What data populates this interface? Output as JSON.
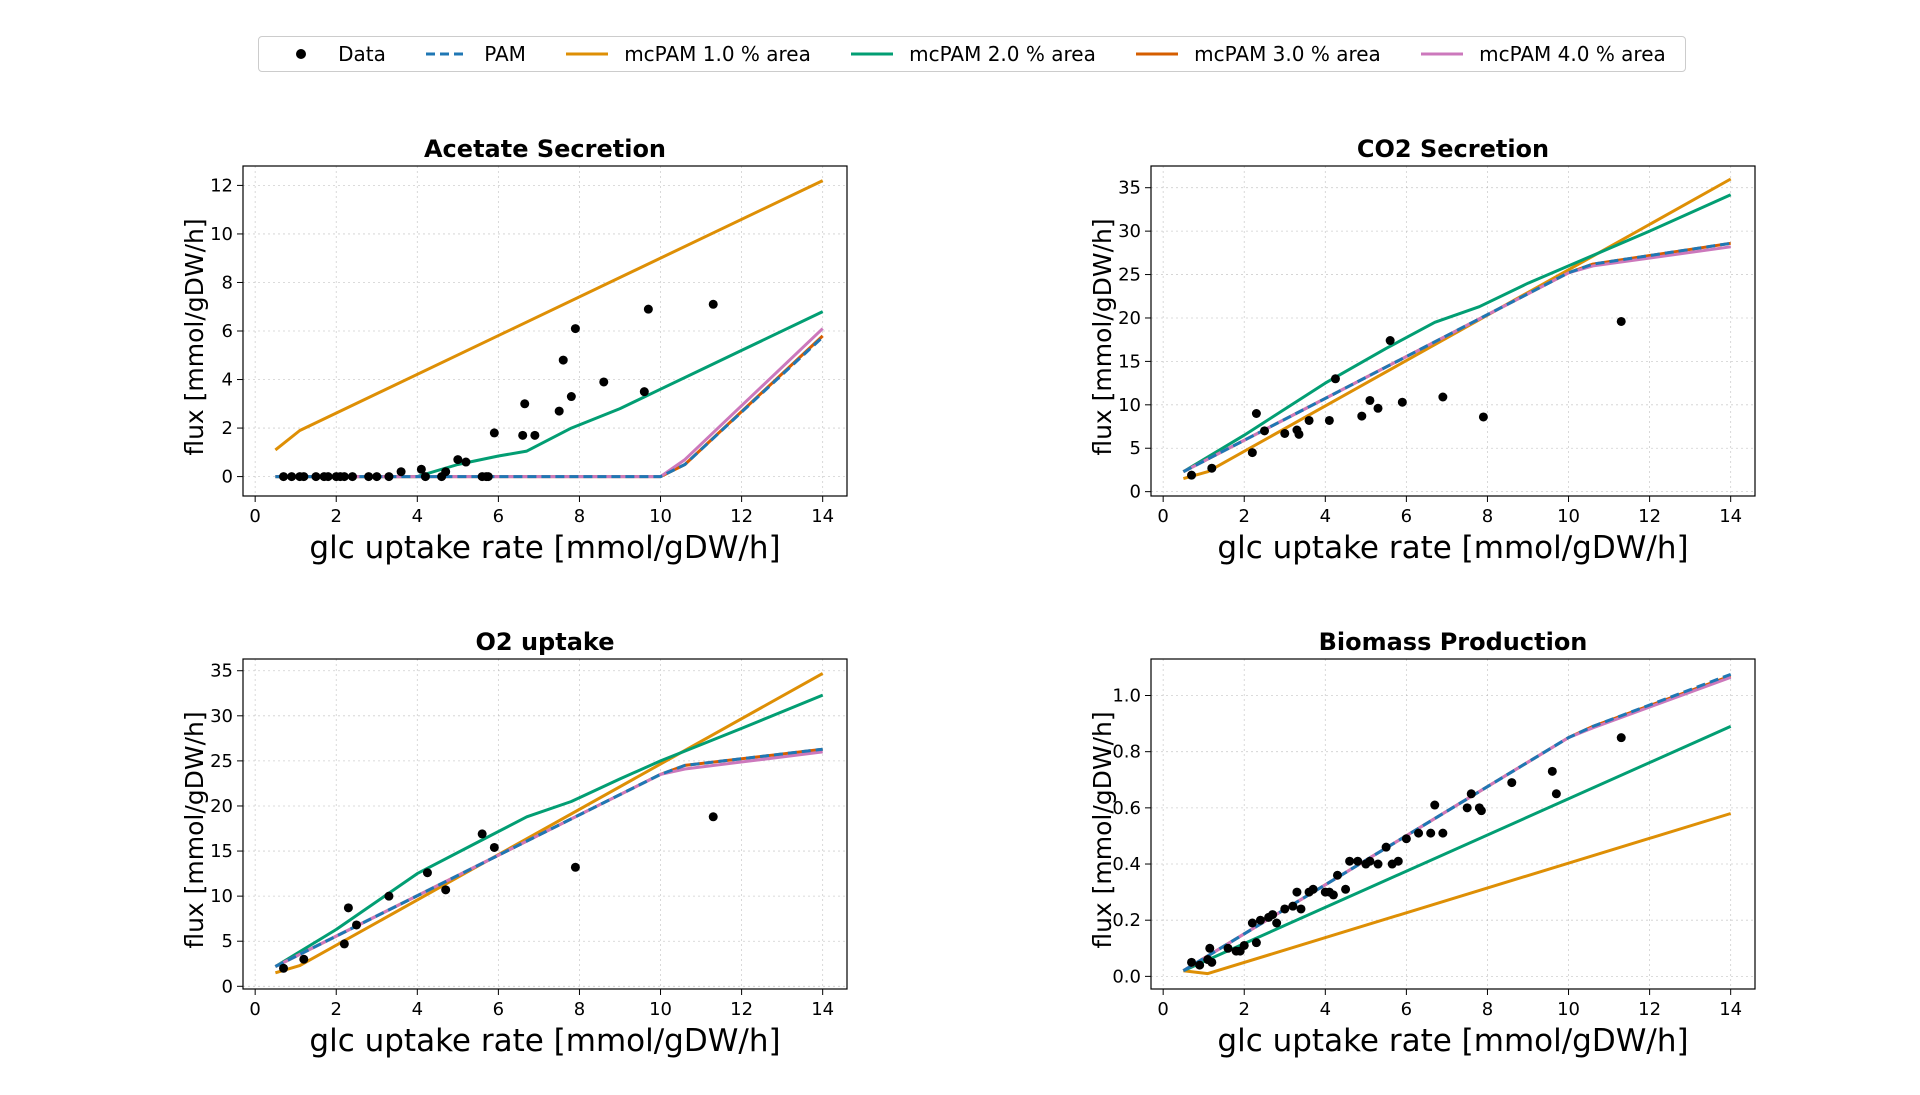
{
  "legend": [
    {
      "label": "Data",
      "kind": "marker",
      "color": "#000000"
    },
    {
      "label": "PAM",
      "kind": "dashed",
      "color": "#1f77b4"
    },
    {
      "label": "mcPAM 1.0 % area",
      "kind": "line",
      "color": "#de8f05"
    },
    {
      "label": "mcPAM 2.0 % area",
      "kind": "line",
      "color": "#029e73"
    },
    {
      "label": "mcPAM 3.0 % area",
      "kind": "line",
      "color": "#d55e00"
    },
    {
      "label": "mcPAM 4.0 % area",
      "kind": "line",
      "color": "#cc78bc"
    }
  ],
  "chart_data": [
    {
      "type": "line",
      "title": "Acetate Secretion",
      "xlabel": "glc uptake rate [mmol/gDW/h]",
      "ylabel": "flux [mmol/gDW/h]",
      "xlim": [
        -0.3,
        14.6
      ],
      "ylim": [
        -0.8,
        12.8
      ],
      "xticks": [
        0,
        2,
        4,
        6,
        8,
        10,
        12,
        14
      ],
      "yticks": [
        0,
        2,
        4,
        6,
        8,
        10,
        12
      ],
      "grid": true,
      "series": [
        {
          "name": "mcPAM 1.0 % area",
          "color": "#de8f05",
          "x": [
            0.5,
            1.1,
            14
          ],
          "y": [
            1.1,
            1.9,
            12.2
          ]
        },
        {
          "name": "mcPAM 2.0 % area",
          "color": "#029e73",
          "x": [
            0.5,
            4,
            5,
            6,
            6.7,
            7.8,
            9,
            10,
            12,
            14
          ],
          "y": [
            0,
            0,
            0.5,
            0.85,
            1.05,
            2.0,
            2.8,
            3.6,
            5.2,
            6.8
          ]
        },
        {
          "name": "mcPAM 3.0 % area",
          "color": "#d55e00",
          "x": [
            0.5,
            10,
            10.6,
            14
          ],
          "y": [
            0,
            0,
            0.5,
            5.8
          ]
        },
        {
          "name": "mcPAM 4.0 % area",
          "color": "#cc78bc",
          "x": [
            0.5,
            10,
            10.6,
            14
          ],
          "y": [
            0,
            0,
            0.7,
            6.1
          ]
        },
        {
          "name": "PAM",
          "color": "#1f77b4",
          "dashed": true,
          "x": [
            0.5,
            10,
            10.6,
            14
          ],
          "y": [
            0,
            0,
            0.5,
            5.75
          ]
        }
      ],
      "points": [
        [
          0.7,
          0
        ],
        [
          0.9,
          0
        ],
        [
          1.1,
          0
        ],
        [
          1.2,
          0
        ],
        [
          1.5,
          0
        ],
        [
          1.7,
          0
        ],
        [
          1.8,
          0
        ],
        [
          2.0,
          0
        ],
        [
          2.1,
          0
        ],
        [
          2.2,
          0
        ],
        [
          2.4,
          0
        ],
        [
          2.8,
          0
        ],
        [
          3.0,
          0
        ],
        [
          3.3,
          0
        ],
        [
          3.6,
          0.2
        ],
        [
          4.1,
          0.3
        ],
        [
          4.2,
          0
        ],
        [
          4.6,
          0
        ],
        [
          4.7,
          0.2
        ],
        [
          5.0,
          0.7
        ],
        [
          5.2,
          0.6
        ],
        [
          5.6,
          0
        ],
        [
          5.7,
          0
        ],
        [
          5.75,
          0
        ],
        [
          5.9,
          1.8
        ],
        [
          6.6,
          1.7
        ],
        [
          6.65,
          3.0
        ],
        [
          6.9,
          1.7
        ],
        [
          7.5,
          2.7
        ],
        [
          7.6,
          4.8
        ],
        [
          7.8,
          3.3
        ],
        [
          7.9,
          6.1
        ],
        [
          8.6,
          3.9
        ],
        [
          9.6,
          3.5
        ],
        [
          9.7,
          6.9
        ],
        [
          11.3,
          7.1
        ]
      ]
    },
    {
      "type": "line",
      "title": "CO2 Secretion",
      "xlabel": "glc uptake rate [mmol/gDW/h]",
      "ylabel": "flux [mmol/gDW/h]",
      "xlim": [
        -0.3,
        14.6
      ],
      "ylim": [
        -0.5,
        37.5
      ],
      "xticks": [
        0,
        2,
        4,
        6,
        8,
        10,
        12,
        14
      ],
      "yticks": [
        0,
        5,
        10,
        15,
        20,
        25,
        30,
        35
      ],
      "grid": true,
      "series": [
        {
          "name": "mcPAM 1.0 % area",
          "color": "#de8f05",
          "x": [
            0.5,
            1.1,
            14
          ],
          "y": [
            1.5,
            2.3,
            36
          ]
        },
        {
          "name": "mcPAM 2.0 % area",
          "color": "#029e73",
          "x": [
            0.5,
            2,
            4,
            5.5,
            6.7,
            7.8,
            9,
            10,
            12,
            14
          ],
          "y": [
            2.3,
            6.5,
            12.5,
            16.5,
            19.5,
            21.3,
            24,
            26,
            30,
            34.2
          ]
        },
        {
          "name": "mcPAM 3.0 % area",
          "color": "#d55e00",
          "x": [
            0.5,
            10,
            10.6,
            14
          ],
          "y": [
            2.3,
            25.2,
            26.2,
            28.6
          ]
        },
        {
          "name": "mcPAM 4.0 % area",
          "color": "#cc78bc",
          "x": [
            0.5,
            10,
            10.6,
            14
          ],
          "y": [
            2.3,
            25.2,
            26,
            28.2
          ]
        },
        {
          "name": "PAM",
          "color": "#1f77b4",
          "dashed": true,
          "x": [
            0.5,
            10,
            10.6,
            14
          ],
          "y": [
            2.3,
            25.2,
            26.2,
            28.6
          ]
        }
      ],
      "points": [
        [
          0.7,
          1.9
        ],
        [
          1.2,
          2.7
        ],
        [
          2.2,
          4.5
        ],
        [
          2.3,
          9.0
        ],
        [
          2.5,
          7.0
        ],
        [
          3.0,
          6.7
        ],
        [
          3.3,
          7.1
        ],
        [
          3.35,
          6.6
        ],
        [
          3.6,
          8.2
        ],
        [
          4.1,
          8.2
        ],
        [
          4.25,
          13.0
        ],
        [
          4.9,
          8.7
        ],
        [
          5.1,
          10.5
        ],
        [
          5.3,
          9.6
        ],
        [
          5.6,
          17.4
        ],
        [
          5.9,
          10.3
        ],
        [
          6.9,
          10.9
        ],
        [
          7.9,
          8.6
        ],
        [
          11.3,
          19.6
        ]
      ]
    },
    {
      "type": "line",
      "title": "O2 uptake",
      "xlabel": "glc uptake rate [mmol/gDW/h]",
      "ylabel": "flux [mmol/gDW/h]",
      "xlim": [
        -0.3,
        14.6
      ],
      "ylim": [
        -0.3,
        36.3
      ],
      "xticks": [
        0,
        2,
        4,
        6,
        8,
        10,
        12,
        14
      ],
      "yticks": [
        0,
        5,
        10,
        15,
        20,
        25,
        30,
        35
      ],
      "grid": true,
      "series": [
        {
          "name": "mcPAM 1.0 % area",
          "color": "#de8f05",
          "x": [
            0.5,
            1.1,
            14
          ],
          "y": [
            1.5,
            2.3,
            34.7
          ]
        },
        {
          "name": "mcPAM 2.0 % area",
          "color": "#029e73",
          "x": [
            0.5,
            2,
            4,
            5.5,
            6.7,
            7.8,
            9,
            10,
            12,
            14
          ],
          "y": [
            2.2,
            6.3,
            12.5,
            16.0,
            18.8,
            20.5,
            23.0,
            25.0,
            28.6,
            32.3
          ]
        },
        {
          "name": "mcPAM 3.0 % area",
          "color": "#d55e00",
          "x": [
            0.5,
            10,
            10.6,
            14
          ],
          "y": [
            2.2,
            23.5,
            24.5,
            26.3
          ]
        },
        {
          "name": "mcPAM 4.0 % area",
          "color": "#cc78bc",
          "x": [
            0.5,
            10,
            10.6,
            14
          ],
          "y": [
            2.2,
            23.5,
            24.1,
            26.0
          ]
        },
        {
          "name": "PAM",
          "color": "#1f77b4",
          "dashed": true,
          "x": [
            0.5,
            10,
            10.6,
            14
          ],
          "y": [
            2.2,
            23.5,
            24.5,
            26.3
          ]
        }
      ],
      "points": [
        [
          0.7,
          2.0
        ],
        [
          1.2,
          3.0
        ],
        [
          2.2,
          4.7
        ],
        [
          2.3,
          8.7
        ],
        [
          2.5,
          6.8
        ],
        [
          3.3,
          10.0
        ],
        [
          4.25,
          12.6
        ],
        [
          4.7,
          10.7
        ],
        [
          5.6,
          16.9
        ],
        [
          5.9,
          15.4
        ],
        [
          7.9,
          13.2
        ],
        [
          11.3,
          18.8
        ]
      ]
    },
    {
      "type": "line",
      "title": "Biomass Production",
      "xlabel": "glc uptake rate [mmol/gDW/h]",
      "ylabel": "flux [mmol/gDW/h]",
      "xlim": [
        -0.3,
        14.6
      ],
      "ylim": [
        -0.045,
        1.13
      ],
      "xticks": [
        0,
        2,
        4,
        6,
        8,
        10,
        12,
        14
      ],
      "yticks": [
        0.0,
        0.2,
        0.4,
        0.6,
        0.8,
        1.0
      ],
      "ytick_labels": [
        "0.0",
        "0.2",
        "0.4",
        "0.6",
        "0.8",
        "1.0"
      ],
      "grid": true,
      "series": [
        {
          "name": "mcPAM 1.0 % area",
          "color": "#de8f05",
          "x": [
            0.5,
            1.1,
            14
          ],
          "y": [
            0.02,
            0.01,
            0.58
          ]
        },
        {
          "name": "mcPAM 2.0 % area",
          "color": "#029e73",
          "x": [
            0.5,
            14
          ],
          "y": [
            0.02,
            0.89
          ]
        },
        {
          "name": "mcPAM 3.0 % area",
          "color": "#d55e00",
          "x": [
            0.5,
            10,
            10.6,
            14
          ],
          "y": [
            0.02,
            0.85,
            0.89,
            1.07
          ]
        },
        {
          "name": "mcPAM 4.0 % area",
          "color": "#cc78bc",
          "x": [
            0.5,
            10,
            10.6,
            14
          ],
          "y": [
            0.02,
            0.85,
            0.885,
            1.065
          ]
        },
        {
          "name": "PAM",
          "color": "#1f77b4",
          "dashed": true,
          "x": [
            0.5,
            10,
            10.6,
            14
          ],
          "y": [
            0.02,
            0.85,
            0.89,
            1.075
          ]
        }
      ],
      "points": [
        [
          0.7,
          0.05
        ],
        [
          0.9,
          0.04
        ],
        [
          1.1,
          0.06
        ],
        [
          1.15,
          0.1
        ],
        [
          1.2,
          0.05
        ],
        [
          1.6,
          0.1
        ],
        [
          1.8,
          0.09
        ],
        [
          1.9,
          0.09
        ],
        [
          2.0,
          0.11
        ],
        [
          2.2,
          0.19
        ],
        [
          2.3,
          0.12
        ],
        [
          2.4,
          0.2
        ],
        [
          2.6,
          0.21
        ],
        [
          2.7,
          0.22
        ],
        [
          2.8,
          0.19
        ],
        [
          3.0,
          0.24
        ],
        [
          3.2,
          0.25
        ],
        [
          3.3,
          0.3
        ],
        [
          3.4,
          0.24
        ],
        [
          3.6,
          0.3
        ],
        [
          3.7,
          0.31
        ],
        [
          4.0,
          0.3
        ],
        [
          4.1,
          0.3
        ],
        [
          4.2,
          0.29
        ],
        [
          4.3,
          0.36
        ],
        [
          4.5,
          0.31
        ],
        [
          4.6,
          0.41
        ],
        [
          4.8,
          0.41
        ],
        [
          5.0,
          0.4
        ],
        [
          5.1,
          0.41
        ],
        [
          5.3,
          0.4
        ],
        [
          5.5,
          0.46
        ],
        [
          5.65,
          0.4
        ],
        [
          5.8,
          0.41
        ],
        [
          6.0,
          0.49
        ],
        [
          6.3,
          0.51
        ],
        [
          6.6,
          0.51
        ],
        [
          6.7,
          0.61
        ],
        [
          6.9,
          0.51
        ],
        [
          7.5,
          0.6
        ],
        [
          7.6,
          0.65
        ],
        [
          7.8,
          0.6
        ],
        [
          7.85,
          0.59
        ],
        [
          8.6,
          0.69
        ],
        [
          9.6,
          0.73
        ],
        [
          9.7,
          0.65
        ],
        [
          11.3,
          0.85
        ]
      ]
    }
  ]
}
